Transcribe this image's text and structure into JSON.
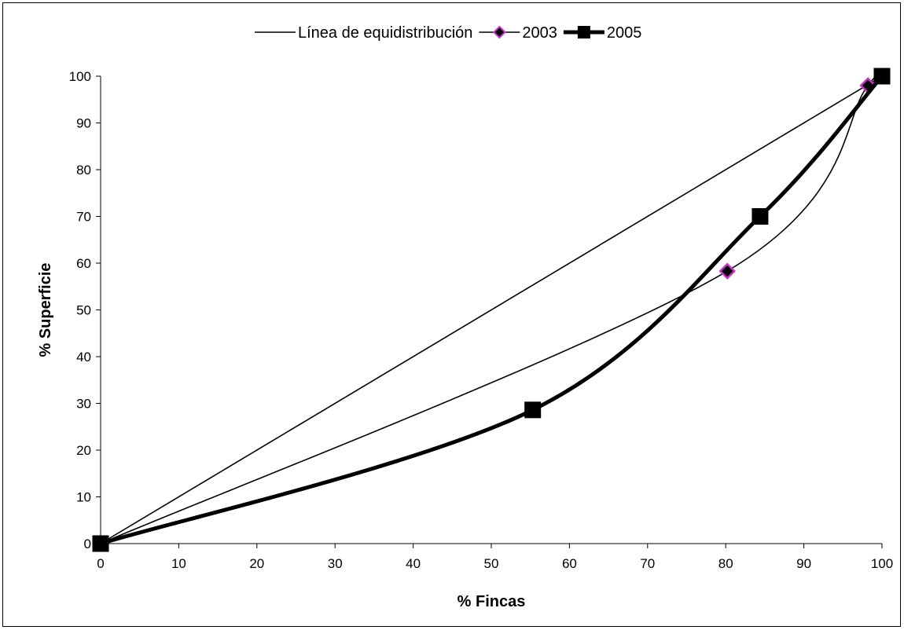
{
  "chart_data": {
    "type": "line",
    "xlabel": "% Fincas",
    "ylabel": "% Superficie",
    "xlim": [
      0,
      100
    ],
    "ylim": [
      0,
      100
    ],
    "xticks": [
      0,
      10,
      20,
      30,
      40,
      50,
      60,
      70,
      80,
      90,
      100
    ],
    "yticks": [
      0,
      10,
      20,
      30,
      40,
      50,
      60,
      70,
      80,
      90,
      100
    ],
    "grid": false,
    "legend_position": "top",
    "series": [
      {
        "name": "Línea de equidistribución",
        "color": "#000000",
        "points": [
          [
            0,
            0
          ],
          [
            100,
            100
          ]
        ]
      },
      {
        "name": "2003",
        "color": "#000000",
        "marker_fill": "#000000",
        "marker_edge": "#cc33cc",
        "marker": "diamond",
        "points": [
          [
            0,
            0
          ],
          [
            80.2,
            58.3
          ],
          [
            98.2,
            98
          ],
          [
            100,
            100
          ]
        ]
      },
      {
        "name": "2005",
        "color": "#000000",
        "marker": "square",
        "points": [
          [
            0,
            0
          ],
          [
            55.3,
            28.6
          ],
          [
            84.4,
            70
          ],
          [
            100,
            100
          ]
        ]
      }
    ]
  }
}
